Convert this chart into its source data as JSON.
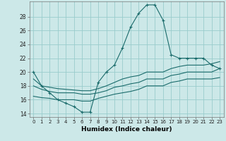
{
  "title": "",
  "xlabel": "Humidex (Indice chaleur)",
  "background_color": "#cce8e8",
  "grid_color": "#99cccc",
  "line_color": "#1a6b6b",
  "xlim": [
    -0.5,
    23.5
  ],
  "ylim": [
    13.5,
    30.2
  ],
  "yticks": [
    14,
    16,
    18,
    20,
    22,
    24,
    26,
    28
  ],
  "xticks": [
    0,
    1,
    2,
    3,
    4,
    5,
    6,
    7,
    8,
    9,
    10,
    11,
    12,
    13,
    14,
    15,
    16,
    17,
    18,
    19,
    20,
    21,
    22,
    23
  ],
  "series": [
    {
      "x": [
        0,
        1,
        2,
        3,
        4,
        5,
        6,
        7,
        8,
        9,
        10,
        11,
        12,
        13,
        14,
        15,
        16,
        17,
        18,
        19,
        20,
        21,
        22,
        23
      ],
      "y": [
        20,
        18,
        17,
        16,
        15.5,
        15,
        14.2,
        14.2,
        18.5,
        20,
        21,
        23.5,
        26.5,
        28.5,
        29.7,
        29.7,
        27.5,
        22.5,
        22,
        22,
        22,
        22,
        21,
        20.5
      ],
      "marker": "+"
    },
    {
      "x": [
        0,
        1,
        2,
        3,
        4,
        5,
        6,
        7,
        8,
        9,
        10,
        11,
        12,
        13,
        14,
        15,
        16,
        17,
        18,
        19,
        20,
        21,
        22,
        23
      ],
      "y": [
        19,
        18,
        17.8,
        17.6,
        17.5,
        17.4,
        17.3,
        17.3,
        17.6,
        18,
        18.5,
        19,
        19.3,
        19.5,
        20,
        20,
        20,
        20.5,
        20.8,
        21,
        21,
        21,
        21.2,
        21.5
      ],
      "marker": null
    },
    {
      "x": [
        0,
        1,
        2,
        3,
        4,
        5,
        6,
        7,
        8,
        9,
        10,
        11,
        12,
        13,
        14,
        15,
        16,
        17,
        18,
        19,
        20,
        21,
        22,
        23
      ],
      "y": [
        18,
        17.5,
        17.2,
        17,
        17,
        17,
        16.8,
        16.8,
        17,
        17.3,
        17.8,
        18,
        18.3,
        18.5,
        19,
        19,
        19,
        19.5,
        19.7,
        20,
        20,
        20,
        20,
        20.5
      ],
      "marker": null
    },
    {
      "x": [
        0,
        1,
        2,
        3,
        4,
        5,
        6,
        7,
        8,
        9,
        10,
        11,
        12,
        13,
        14,
        15,
        16,
        17,
        18,
        19,
        20,
        21,
        22,
        23
      ],
      "y": [
        16.5,
        16.3,
        16.2,
        16,
        16,
        16,
        15.8,
        15.8,
        16.2,
        16.5,
        16.8,
        17,
        17.2,
        17.5,
        18,
        18,
        18,
        18.5,
        18.7,
        19,
        19,
        19,
        19,
        19.2
      ],
      "marker": null
    }
  ]
}
